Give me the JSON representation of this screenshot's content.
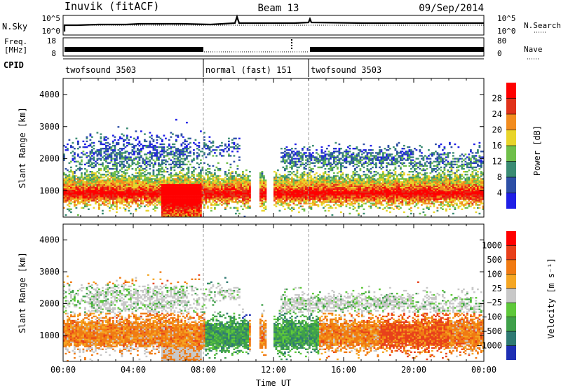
{
  "header": {
    "station": "Inuvik (fitACF)",
    "beam": "Beam 13",
    "date": "09/Sep/2014"
  },
  "nsky_panel": {
    "left_label": "N.Sky",
    "right_label": "N.Search",
    "left_ticks": [
      "10^5",
      "10^0"
    ],
    "right_ticks": [
      "10^5",
      "10^0"
    ]
  },
  "freq_panel": {
    "left_label_1": "Freq.",
    "left_label_2": "[MHz]",
    "right_label": "Nave",
    "left_ticks": [
      "18",
      "8"
    ],
    "right_ticks": [
      "80",
      "0"
    ]
  },
  "cpid": {
    "label": "CPID",
    "segments": [
      {
        "start": 0,
        "end": 8,
        "label": "twofsound 3503"
      },
      {
        "start": 8,
        "end": 14,
        "label": "normal (fast) 151"
      },
      {
        "start": 14,
        "end": 24,
        "label": "twofsound 3503"
      }
    ]
  },
  "chart_data": [
    {
      "type": "heatmap",
      "name": "power",
      "xlabel": "Time UT",
      "ylabel": "Slant Range [km]",
      "xlim": [
        0,
        24
      ],
      "ylim": [
        180,
        4500
      ],
      "yticks": [
        "1000",
        "2000",
        "3000",
        "4000"
      ],
      "colorbar": {
        "label": "Power [dB]",
        "ticks": [
          "4",
          "8",
          "12",
          "16",
          "20",
          "24",
          "28"
        ],
        "colors": [
          "#1f1fe6",
          "#2d4fa6",
          "#3a8b73",
          "#6fbf4a",
          "#e8d42a",
          "#f28c1e",
          "#e0321a",
          "#ff0000"
        ]
      }
    },
    {
      "type": "heatmap",
      "name": "velocity",
      "xlabel": "Time UT",
      "ylabel": "Slant Range [km]",
      "xlim": [
        0,
        24
      ],
      "ylim": [
        180,
        4500
      ],
      "xticks": [
        "00:00",
        "04:00",
        "08:00",
        "12:00",
        "16:00",
        "20:00",
        "00:00"
      ],
      "yticks": [
        "1000",
        "2000",
        "3000",
        "4000"
      ],
      "colorbar": {
        "label": "Velocity [m s⁻¹]",
        "ticks": [
          "1000",
          "500",
          "100",
          "25",
          "−25",
          "−100",
          "−500",
          "−1000"
        ],
        "colors": [
          "#1e2fb4",
          "#2f7a73",
          "#3fa04a",
          "#5ec83a",
          "#c8c8c8",
          "#f5a623",
          "#f07a12",
          "#e8401a",
          "#ff0000"
        ]
      }
    }
  ]
}
